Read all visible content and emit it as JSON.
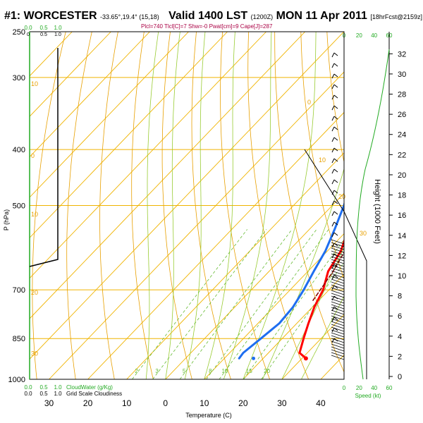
{
  "header": {
    "station": "#1: WORCESTER",
    "coords": "-33.65°,19.4° (15,18)",
    "valid": "Valid 1400 LST",
    "utc": "(1200Z)",
    "date": "MON 11 Apr 2011",
    "forecast": "[18hrFcst@2159z]",
    "indices": "Plcl=740 Tlcl[C]=7 Shw=-0 Pwat[cm]=9 Cape[J]=287"
  },
  "chart_data": {
    "type": "line",
    "title": "#1: WORCESTER",
    "xlabel": "Temperature (C)",
    "ylabel": "P (hPa)",
    "y2label": "Height (1000 Feet)",
    "temperature_ticks": [
      -30,
      -20,
      -10,
      0,
      10,
      20,
      30,
      40
    ],
    "temperature_tick_labels": [
      "30",
      "20",
      "10",
      "0",
      "10",
      "20",
      "30",
      "40"
    ],
    "pressure_ticks": [
      250,
      300,
      400,
      500,
      700,
      850,
      1000
    ],
    "height_ticks_kft": [
      0,
      2,
      4,
      6,
      8,
      10,
      12,
      14,
      16,
      18,
      20,
      22,
      24,
      26,
      28,
      30,
      32
    ],
    "xlim": [
      -35,
      46
    ],
    "ylim": [
      1000,
      250
    ],
    "skew_deg_per_log": 62,
    "series": [
      {
        "name": "Temperature",
        "color": "#ff0000",
        "points": [
          {
            "p": 920,
            "t": 31
          },
          {
            "p": 900,
            "t": 28
          },
          {
            "p": 850,
            "t": 25.5
          },
          {
            "p": 800,
            "t": 23
          },
          {
            "p": 750,
            "t": 20.5
          },
          {
            "p": 700,
            "t": 18.5
          },
          {
            "p": 650,
            "t": 15.2
          },
          {
            "p": 600,
            "t": 13.5
          },
          {
            "p": 550,
            "t": 10
          },
          {
            "p": 500,
            "t": 6
          },
          {
            "p": 450,
            "t": 2
          },
          {
            "p": 400,
            "t": -3
          },
          {
            "p": 350,
            "t": -9.5
          },
          {
            "p": 300,
            "t": -18
          },
          {
            "p": 265,
            "t": -24
          }
        ]
      },
      {
        "name": "Dewpoint",
        "color": "#1e6ef0",
        "points": [
          {
            "p": 920,
            "t": 13.8
          },
          {
            "p": 900,
            "t": 13.5
          },
          {
            "p": 850,
            "t": 14.5
          },
          {
            "p": 800,
            "t": 15.5
          },
          {
            "p": 750,
            "t": 15
          },
          {
            "p": 700,
            "t": 13.5
          },
          {
            "p": 650,
            "t": 11.5
          },
          {
            "p": 600,
            "t": 9.5
          },
          {
            "p": 550,
            "t": 6.5
          },
          {
            "p": 500,
            "t": 3
          },
          {
            "p": 450,
            "t": -1.5
          },
          {
            "p": 400,
            "t": -6.5
          },
          {
            "p": 350,
            "t": -13.5
          },
          {
            "p": 300,
            "t": -23
          },
          {
            "p": 265,
            "t": -30
          }
        ]
      },
      {
        "name": "Parcel",
        "color": "#800000",
        "dashed": true,
        "points": [
          {
            "p": 730,
            "t": 18.5
          },
          {
            "p": 650,
            "t": 16.5
          },
          {
            "p": 600,
            "t": 14.5
          },
          {
            "p": 550,
            "t": 11.5
          },
          {
            "p": 500,
            "t": 7.5
          },
          {
            "p": 450,
            "t": 2.5
          },
          {
            "p": 425,
            "t": -0.5
          }
        ]
      }
    ],
    "surface_dewpoint_marker": {
      "p": 920,
      "t": 17.5
    },
    "mixing_ratio_labels": [
      "2",
      "3",
      "5",
      "8",
      "10",
      "15",
      "20"
    ],
    "dry_adiabat_labels": [
      "0",
      "10",
      "20",
      "30"
    ],
    "isotherm_labels": [
      "10",
      "0",
      "-10",
      "-20",
      "-30"
    ],
    "cloud_scale": {
      "top_labels": [
        "0.0",
        "0.5",
        "1.0"
      ],
      "bottom_labels": [
        "0.0",
        "0.5",
        "1.0"
      ],
      "bottom_caption_green": "CloudWater (g/Kg)",
      "bottom_caption_black": "Grid Scale Cloudiness",
      "top_sub_labels": [
        "0",
        "0.5",
        "1.0"
      ]
    },
    "wind_speed_scale": {
      "labels": [
        "0",
        "20",
        "40",
        "60"
      ],
      "caption": "Speed (kt)"
    }
  }
}
